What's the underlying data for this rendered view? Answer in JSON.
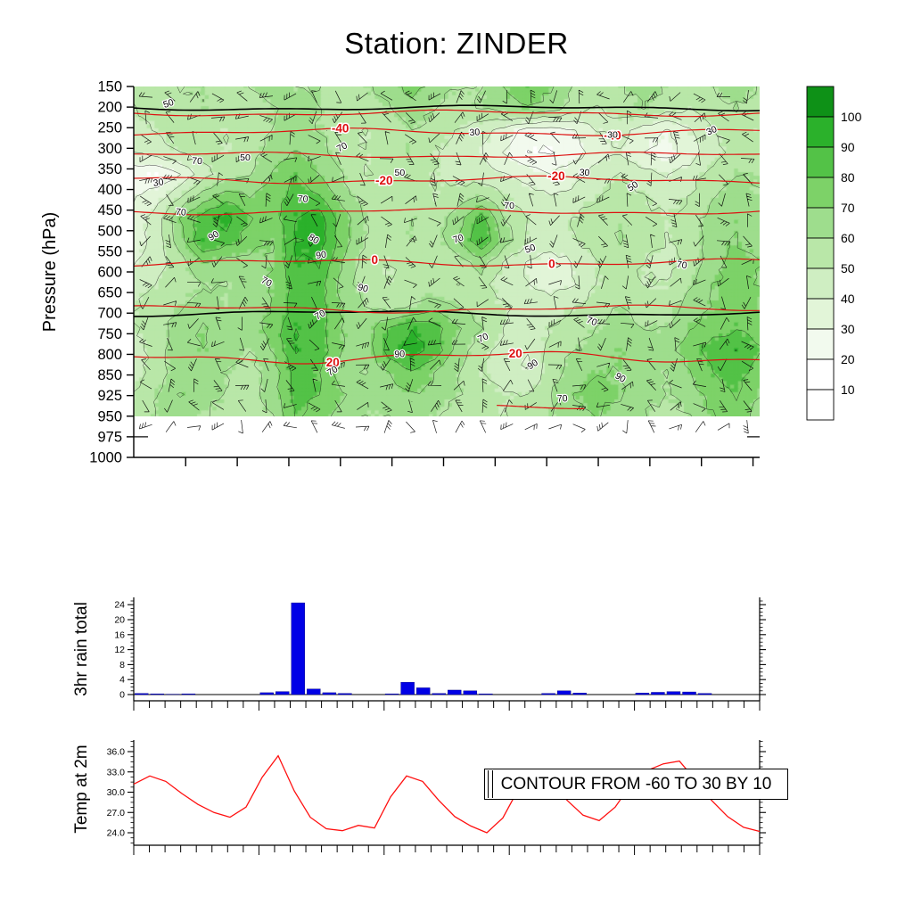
{
  "page": {
    "title": "Station: ZINDER",
    "background": "#ffffff"
  },
  "chart_data": [
    {
      "type": "heatmap",
      "panel": "pressure-time-section",
      "ylabel": "Pressure (hPa)",
      "field_name": "relative-humidity-shading-percent",
      "pressure_levels": [
        150,
        200,
        250,
        300,
        350,
        400,
        450,
        500,
        550,
        600,
        650,
        700,
        750,
        800,
        850,
        925,
        950,
        975,
        1000
      ],
      "x_major_ticks": 12,
      "color_thresholds": [
        10,
        20,
        30,
        40,
        50,
        60,
        70,
        80,
        90,
        100
      ],
      "colors": [
        "#ffffff",
        "#ffffff",
        "#f2faee",
        "#e2f5d8",
        "#cfeec2",
        "#b9e7a8",
        "#9edd8d",
        "#7dd268",
        "#53c247",
        "#2bb12b",
        "#0e9117"
      ],
      "colorbar_labels": [
        "100",
        "90",
        "80",
        "70",
        "60",
        "50",
        "40",
        "30",
        "20",
        "10"
      ],
      "rh_contour_levels": [
        20,
        30,
        40,
        50,
        60,
        70,
        80,
        90
      ],
      "rh_grid": [
        [
          55,
          55,
          60,
          60,
          55,
          60,
          65,
          60,
          60,
          55,
          60,
          65,
          75,
          65,
          60,
          60,
          70,
          80,
          70,
          60,
          55,
          60,
          65,
          60,
          55,
          60,
          65,
          60
        ],
        [
          50,
          55,
          55,
          60,
          55,
          55,
          60,
          65,
          60,
          55,
          55,
          60,
          65,
          60,
          55,
          60,
          65,
          70,
          65,
          55,
          50,
          55,
          60,
          55,
          50,
          55,
          60,
          55
        ],
        [
          45,
          50,
          55,
          55,
          50,
          55,
          60,
          65,
          60,
          55,
          50,
          55,
          60,
          55,
          50,
          45,
          35,
          25,
          25,
          30,
          40,
          45,
          35,
          30,
          40,
          50,
          55,
          50
        ],
        [
          40,
          45,
          50,
          55,
          50,
          55,
          65,
          70,
          65,
          55,
          50,
          55,
          60,
          50,
          45,
          40,
          30,
          20,
          20,
          25,
          35,
          40,
          30,
          25,
          35,
          45,
          55,
          55
        ],
        [
          22,
          20,
          30,
          45,
          55,
          60,
          70,
          80,
          70,
          60,
          50,
          55,
          55,
          50,
          45,
          45,
          40,
          35,
          30,
          35,
          45,
          50,
          45,
          40,
          45,
          55,
          60,
          60
        ],
        [
          30,
          35,
          50,
          65,
          75,
          70,
          75,
          85,
          80,
          65,
          55,
          55,
          55,
          50,
          55,
          60,
          50,
          45,
          40,
          45,
          50,
          55,
          50,
          45,
          50,
          60,
          65,
          60
        ],
        [
          35,
          45,
          70,
          85,
          95,
          80,
          75,
          90,
          95,
          75,
          60,
          55,
          60,
          55,
          65,
          85,
          60,
          50,
          45,
          50,
          55,
          60,
          55,
          50,
          55,
          65,
          70,
          65
        ],
        [
          35,
          45,
          65,
          90,
          85,
          75,
          70,
          90,
          95,
          75,
          60,
          55,
          60,
          55,
          70,
          90,
          65,
          50,
          45,
          50,
          55,
          60,
          55,
          50,
          55,
          65,
          70,
          65
        ],
        [
          40,
          45,
          55,
          70,
          65,
          65,
          70,
          90,
          90,
          70,
          55,
          50,
          55,
          50,
          55,
          65,
          50,
          40,
          35,
          40,
          50,
          55,
          50,
          45,
          55,
          65,
          75,
          70
        ],
        [
          45,
          50,
          55,
          60,
          60,
          65,
          70,
          85,
          85,
          65,
          55,
          50,
          55,
          55,
          50,
          55,
          45,
          40,
          35,
          40,
          50,
          55,
          50,
          50,
          60,
          70,
          75,
          70
        ],
        [
          50,
          55,
          60,
          65,
          60,
          65,
          70,
          85,
          85,
          70,
          60,
          55,
          60,
          65,
          60,
          55,
          50,
          45,
          45,
          50,
          55,
          60,
          55,
          55,
          65,
          70,
          75,
          70
        ],
        [
          50,
          55,
          65,
          70,
          65,
          65,
          75,
          90,
          85,
          70,
          65,
          80,
          90,
          85,
          70,
          60,
          50,
          45,
          50,
          55,
          60,
          65,
          60,
          60,
          70,
          75,
          80,
          75
        ],
        [
          45,
          55,
          65,
          70,
          65,
          60,
          70,
          90,
          85,
          70,
          65,
          85,
          95,
          85,
          65,
          55,
          45,
          40,
          55,
          60,
          65,
          70,
          65,
          65,
          75,
          85,
          90,
          80
        ],
        [
          45,
          55,
          65,
          65,
          60,
          55,
          65,
          85,
          80,
          65,
          60,
          70,
          80,
          70,
          60,
          50,
          45,
          40,
          55,
          65,
          70,
          70,
          65,
          60,
          70,
          80,
          85,
          75
        ],
        [
          50,
          60,
          70,
          65,
          60,
          55,
          65,
          85,
          80,
          70,
          65,
          65,
          70,
          65,
          60,
          55,
          50,
          50,
          60,
          70,
          75,
          70,
          65,
          60,
          65,
          75,
          80,
          70
        ],
        [
          55,
          60,
          65,
          60,
          55,
          55,
          60,
          80,
          75,
          65,
          60,
          60,
          65,
          60,
          55,
          55,
          50,
          55,
          60,
          65,
          70,
          65,
          60,
          55,
          60,
          70,
          75,
          65
        ]
      ],
      "rh_point_labels": [
        {
          "t": "50",
          "x": 0.057,
          "y": 0.06
        },
        {
          "t": "30",
          "x": 0.545,
          "y": 0.148
        },
        {
          "t": "30",
          "x": 0.765,
          "y": 0.155
        },
        {
          "t": "30",
          "x": 0.925,
          "y": 0.142
        },
        {
          "t": "70",
          "x": 0.101,
          "y": 0.235
        },
        {
          "t": "50",
          "x": 0.178,
          "y": 0.224
        },
        {
          "t": "70",
          "x": 0.335,
          "y": 0.192
        },
        {
          "t": "50",
          "x": 0.425,
          "y": 0.27
        },
        {
          "t": "30",
          "x": 0.04,
          "y": 0.3
        },
        {
          "t": "30",
          "x": 0.72,
          "y": 0.27
        },
        {
          "t": "50",
          "x": 0.8,
          "y": 0.31
        },
        {
          "t": "70",
          "x": 0.075,
          "y": 0.39
        },
        {
          "t": "90",
          "x": 0.13,
          "y": 0.46
        },
        {
          "t": "80",
          "x": 0.285,
          "y": 0.47
        },
        {
          "t": "90",
          "x": 0.3,
          "y": 0.52
        },
        {
          "t": "70",
          "x": 0.27,
          "y": 0.35
        },
        {
          "t": "70",
          "x": 0.52,
          "y": 0.47
        },
        {
          "t": "70",
          "x": 0.6,
          "y": 0.37
        },
        {
          "t": "50",
          "x": 0.635,
          "y": 0.5
        },
        {
          "t": "70",
          "x": 0.875,
          "y": 0.55
        },
        {
          "t": "70",
          "x": 0.21,
          "y": 0.6
        },
        {
          "t": "90",
          "x": 0.365,
          "y": 0.62
        },
        {
          "t": "70",
          "x": 0.3,
          "y": 0.7
        },
        {
          "t": "90",
          "x": 0.425,
          "y": 0.82
        },
        {
          "t": "70",
          "x": 0.56,
          "y": 0.77
        },
        {
          "t": "70",
          "x": 0.73,
          "y": 0.72
        },
        {
          "t": "90",
          "x": 0.64,
          "y": 0.85
        },
        {
          "t": "70",
          "x": 0.32,
          "y": 0.87
        },
        {
          "t": "70",
          "x": 0.685,
          "y": 0.955
        },
        {
          "t": "90",
          "x": 0.775,
          "y": 0.89
        }
      ],
      "temp_contour_color": "#dd1111",
      "temp_contours": [
        {
          "level": "-50",
          "y": 0.072,
          "amp": 2.5,
          "labels": []
        },
        {
          "level": "-40",
          "y": 0.123,
          "amp": 3,
          "labels": [
            0.33,
            0.765
          ]
        },
        {
          "level": "-30",
          "y": 0.185,
          "amp": 2.5,
          "labels": []
        },
        {
          "level": "-20",
          "y": 0.252,
          "amp": 3,
          "labels": [
            0.4,
            0.675
          ]
        },
        {
          "level": "-10",
          "y": 0.337,
          "amp": 2.5,
          "labels": []
        },
        {
          "level": "0",
          "y": 0.475,
          "amp": 3,
          "labels": [
            0.385,
            0.668
          ]
        },
        {
          "level": "10",
          "y": 0.6,
          "amp": 3,
          "labels": []
        },
        {
          "level": "20",
          "y": 0.73,
          "amp": 5,
          "labels": [
            0.318,
            0.61
          ]
        },
        {
          "level": "30",
          "y": 0.862,
          "amp": 2,
          "labels": [],
          "xrange": [
            0.58,
            0.72
          ]
        }
      ],
      "black_lines": [
        {
          "y": 0.058,
          "amp": 2
        },
        {
          "y": 0.612,
          "amp": 2.5
        }
      ],
      "wind_barbs": {
        "cols": 26,
        "rows": 17,
        "seed": 11
      }
    },
    {
      "type": "bar",
      "panel": "rain",
      "ylabel": "3hr rain total",
      "yticks": [
        0,
        4,
        8,
        12,
        16,
        20,
        24
      ],
      "ylim": [
        0,
        26
      ],
      "bar_color": "#0000e6",
      "x_ticks": 41,
      "values": [
        0.3,
        0.2,
        0.1,
        0.2,
        0,
        0,
        0,
        0,
        0.5,
        0.8,
        24.5,
        1.5,
        0.5,
        0.3,
        0,
        0,
        0.2,
        3.3,
        1.8,
        0.3,
        1.2,
        1.0,
        0.2,
        0,
        0,
        0,
        0.3,
        1.0,
        0.4,
        0,
        0,
        0,
        0.4,
        0.6,
        0.8,
        0.7,
        0.3,
        0,
        0,
        0
      ]
    },
    {
      "type": "line",
      "panel": "temp",
      "ylabel": "Temp at 2m",
      "yticks": [
        24,
        27,
        30,
        33,
        36
      ],
      "ytick_labels": [
        "24.0",
        "27.0",
        "30.0",
        "33.0",
        "36.0"
      ],
      "ylim": [
        22.2,
        39.8
      ],
      "line_color": "#ff1010",
      "x_ticks": 41,
      "annotation": "CONTOUR FROM -60 TO 30 BY 10",
      "values": [
        31.2,
        32.4,
        31.6,
        29.8,
        28.2,
        27.0,
        26.3,
        27.8,
        32.2,
        35.4,
        30.2,
        26.3,
        24.6,
        24.3,
        25.1,
        24.7,
        29.3,
        32.4,
        31.6,
        28.8,
        26.4,
        25.0,
        24.0,
        26.2,
        30.6,
        33.2,
        31.8,
        28.8,
        26.6,
        25.8,
        27.8,
        31.2,
        33.2,
        34.2,
        34.6,
        31.8,
        28.8,
        26.4,
        24.8,
        24.2
      ]
    }
  ]
}
